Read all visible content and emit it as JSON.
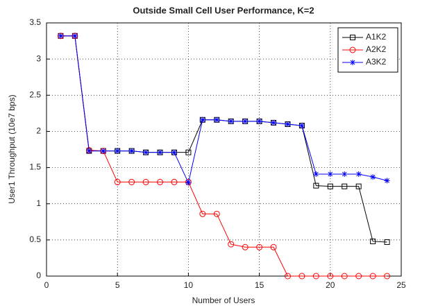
{
  "chart_data": {
    "type": "line",
    "title": "Outside Small Cell User Performance, K=2",
    "xlabel": "Number of Users",
    "ylabel": "User1 Throughput (10e7 bps)",
    "x": [
      1,
      2,
      3,
      4,
      5,
      6,
      7,
      8,
      9,
      10,
      11,
      12,
      13,
      14,
      15,
      16,
      17,
      18,
      19,
      20,
      21,
      22,
      23,
      24
    ],
    "series": [
      {
        "name": "A1K2",
        "color": "#000000",
        "marker": "square",
        "values": [
          3.32,
          3.32,
          1.73,
          1.73,
          1.73,
          1.73,
          1.71,
          1.71,
          1.71,
          1.71,
          2.16,
          2.16,
          2.14,
          2.14,
          2.14,
          2.12,
          2.1,
          2.08,
          1.25,
          1.24,
          1.24,
          1.24,
          0.48,
          0.47
        ]
      },
      {
        "name": "A2K2",
        "color": "#ff0000",
        "marker": "circle",
        "values": [
          3.32,
          3.32,
          1.74,
          1.73,
          1.3,
          1.3,
          1.3,
          1.3,
          1.3,
          1.3,
          0.86,
          0.86,
          0.44,
          0.4,
          0.4,
          0.4,
          0,
          0,
          0,
          0,
          0,
          0,
          0,
          0
        ]
      },
      {
        "name": "A3K2",
        "color": "#0000ff",
        "marker": "star",
        "values": [
          3.32,
          3.32,
          1.73,
          1.73,
          1.73,
          1.73,
          1.71,
          1.71,
          1.71,
          1.29,
          2.16,
          2.16,
          2.14,
          2.14,
          2.14,
          2.12,
          2.1,
          2.08,
          1.41,
          1.41,
          1.41,
          1.41,
          1.37,
          1.32
        ]
      }
    ],
    "xlim": [
      0,
      25
    ],
    "xticks": [
      0,
      5,
      10,
      15,
      20,
      25
    ],
    "ylim": [
      0,
      3.5
    ],
    "yticks": [
      0,
      0.5,
      1,
      1.5,
      2,
      2.5,
      3,
      3.5
    ],
    "grid": true,
    "legend": "northeast"
  }
}
